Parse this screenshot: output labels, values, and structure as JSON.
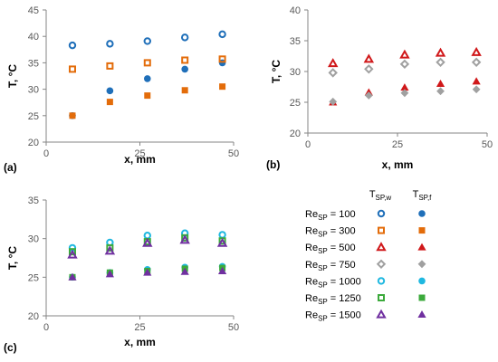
{
  "chart_data": [
    {
      "type": "scatter",
      "panel_label": "(a)",
      "xlabel": "x, mm",
      "ylabel": "T, °C",
      "xlim": [
        0,
        50
      ],
      "ylim": [
        20,
        45
      ],
      "xticks": [
        0,
        25,
        50
      ],
      "yticks": [
        20,
        25,
        30,
        35,
        40,
        45
      ],
      "series": [
        {
          "legend_key": "100",
          "kind": "w",
          "marker": "circle",
          "color": "#1f6fb9",
          "points": [
            [
              7,
              38.3
            ],
            [
              17,
              38.6
            ],
            [
              27,
              39.1
            ],
            [
              37,
              39.8
            ],
            [
              47,
              40.4
            ]
          ]
        },
        {
          "legend_key": "100",
          "kind": "f",
          "marker": "circle",
          "color": "#1f6fb9",
          "points": [
            [
              7,
              25.0
            ],
            [
              17,
              29.7
            ],
            [
              27,
              32.0
            ],
            [
              37,
              33.8
            ],
            [
              47,
              35.0
            ]
          ]
        },
        {
          "legend_key": "300",
          "kind": "w",
          "marker": "square",
          "color": "#e36c0a",
          "points": [
            [
              7,
              33.8
            ],
            [
              17,
              34.4
            ],
            [
              27,
              35.0
            ],
            [
              37,
              35.5
            ],
            [
              47,
              35.7
            ]
          ]
        },
        {
          "legend_key": "300",
          "kind": "f",
          "marker": "square",
          "color": "#e36c0a",
          "points": [
            [
              7,
              25.0
            ],
            [
              17,
              27.6
            ],
            [
              27,
              28.8
            ],
            [
              37,
              29.8
            ],
            [
              47,
              30.5
            ]
          ]
        }
      ]
    },
    {
      "type": "scatter",
      "panel_label": "(b)",
      "xlabel": "x, mm",
      "ylabel": "T, °C",
      "xlim": [
        0,
        50
      ],
      "ylim": [
        20,
        40
      ],
      "xticks": [
        0,
        25,
        50
      ],
      "yticks": [
        20,
        25,
        30,
        35,
        40
      ],
      "series": [
        {
          "legend_key": "500",
          "kind": "w",
          "marker": "triangle",
          "color": "#d0181a",
          "points": [
            [
              7,
              31.3
            ],
            [
              17,
              32.0
            ],
            [
              27,
              32.7
            ],
            [
              37,
              33.0
            ],
            [
              47,
              33.1
            ]
          ]
        },
        {
          "legend_key": "500",
          "kind": "f",
          "marker": "triangle",
          "color": "#d0181a",
          "points": [
            [
              7,
              25.0
            ],
            [
              17,
              26.6
            ],
            [
              27,
              27.4
            ],
            [
              37,
              28.0
            ],
            [
              47,
              28.4
            ]
          ]
        },
        {
          "legend_key": "750",
          "kind": "w",
          "marker": "diamond",
          "color": "#a0a0a0",
          "points": [
            [
              7,
              29.8
            ],
            [
              17,
              30.4
            ],
            [
              27,
              31.2
            ],
            [
              37,
              31.5
            ],
            [
              47,
              31.5
            ]
          ]
        },
        {
          "legend_key": "750",
          "kind": "f",
          "marker": "diamond",
          "color": "#a0a0a0",
          "points": [
            [
              7,
              25.1
            ],
            [
              17,
              26.1
            ],
            [
              27,
              26.5
            ],
            [
              37,
              26.8
            ],
            [
              47,
              27.1
            ]
          ]
        }
      ]
    },
    {
      "type": "scatter",
      "panel_label": "(c)",
      "xlabel": "x, mm",
      "ylabel": "T, °C",
      "xlim": [
        0,
        50
      ],
      "ylim": [
        20,
        35
      ],
      "xticks": [
        0,
        25,
        50
      ],
      "yticks": [
        20,
        25,
        30,
        35
      ],
      "series": [
        {
          "legend_key": "1000",
          "kind": "w",
          "marker": "circle",
          "color": "#1fb8e0",
          "points": [
            [
              7,
              28.8
            ],
            [
              17,
              29.5
            ],
            [
              27,
              30.4
            ],
            [
              37,
              30.7
            ],
            [
              47,
              30.5
            ]
          ]
        },
        {
          "legend_key": "1000",
          "kind": "f",
          "marker": "circle",
          "color": "#1fb8e0",
          "points": [
            [
              7,
              25.0
            ],
            [
              17,
              25.6
            ],
            [
              27,
              26.0
            ],
            [
              37,
              26.3
            ],
            [
              47,
              26.4
            ]
          ]
        },
        {
          "legend_key": "1250",
          "kind": "w",
          "marker": "square",
          "color": "#3caa3c",
          "points": [
            [
              7,
              28.3
            ],
            [
              17,
              28.8
            ],
            [
              27,
              29.6
            ],
            [
              37,
              30.1
            ],
            [
              47,
              29.7
            ]
          ]
        },
        {
          "legend_key": "1250",
          "kind": "f",
          "marker": "square",
          "color": "#3caa3c",
          "points": [
            [
              7,
              25.0
            ],
            [
              17,
              25.6
            ],
            [
              27,
              25.8
            ],
            [
              37,
              26.1
            ],
            [
              47,
              26.2
            ]
          ]
        },
        {
          "legend_key": "1500",
          "kind": "w",
          "marker": "triangle",
          "color": "#7030a0",
          "points": [
            [
              7,
              27.9
            ],
            [
              17,
              28.4
            ],
            [
              27,
              29.4
            ],
            [
              37,
              29.8
            ],
            [
              47,
              29.4
            ]
          ]
        },
        {
          "legend_key": "1500",
          "kind": "f",
          "marker": "triangle",
          "color": "#7030a0",
          "points": [
            [
              7,
              25.0
            ],
            [
              17,
              25.4
            ],
            [
              27,
              25.6
            ],
            [
              37,
              25.7
            ],
            [
              47,
              25.8
            ]
          ]
        }
      ]
    }
  ],
  "legend": {
    "col_w_base": "T",
    "col_w_sub": "SP,w",
    "col_f_base": "T",
    "col_f_sub": "SP,f",
    "rows": [
      {
        "base": "Re",
        "sub": "SP",
        "text": " = 100",
        "marker": "circle",
        "color": "#1f6fb9"
      },
      {
        "base": "Re",
        "sub": "SP",
        "text": " = 300",
        "marker": "square",
        "color": "#e36c0a"
      },
      {
        "base": "Re",
        "sub": "SP",
        "text": " = 500",
        "marker": "triangle",
        "color": "#d0181a"
      },
      {
        "base": "Re",
        "sub": "SP",
        "text": " = 750",
        "marker": "diamond",
        "color": "#a0a0a0"
      },
      {
        "base": "Re",
        "sub": "SP",
        "text": " = 1000",
        "marker": "circle",
        "color": "#1fb8e0"
      },
      {
        "base": "Re",
        "sub": "SP",
        "text": " = 1250",
        "marker": "square",
        "color": "#3caa3c"
      },
      {
        "base": "Re",
        "sub": "SP",
        "text": " = 1500",
        "marker": "triangle",
        "color": "#7030a0"
      }
    ]
  }
}
